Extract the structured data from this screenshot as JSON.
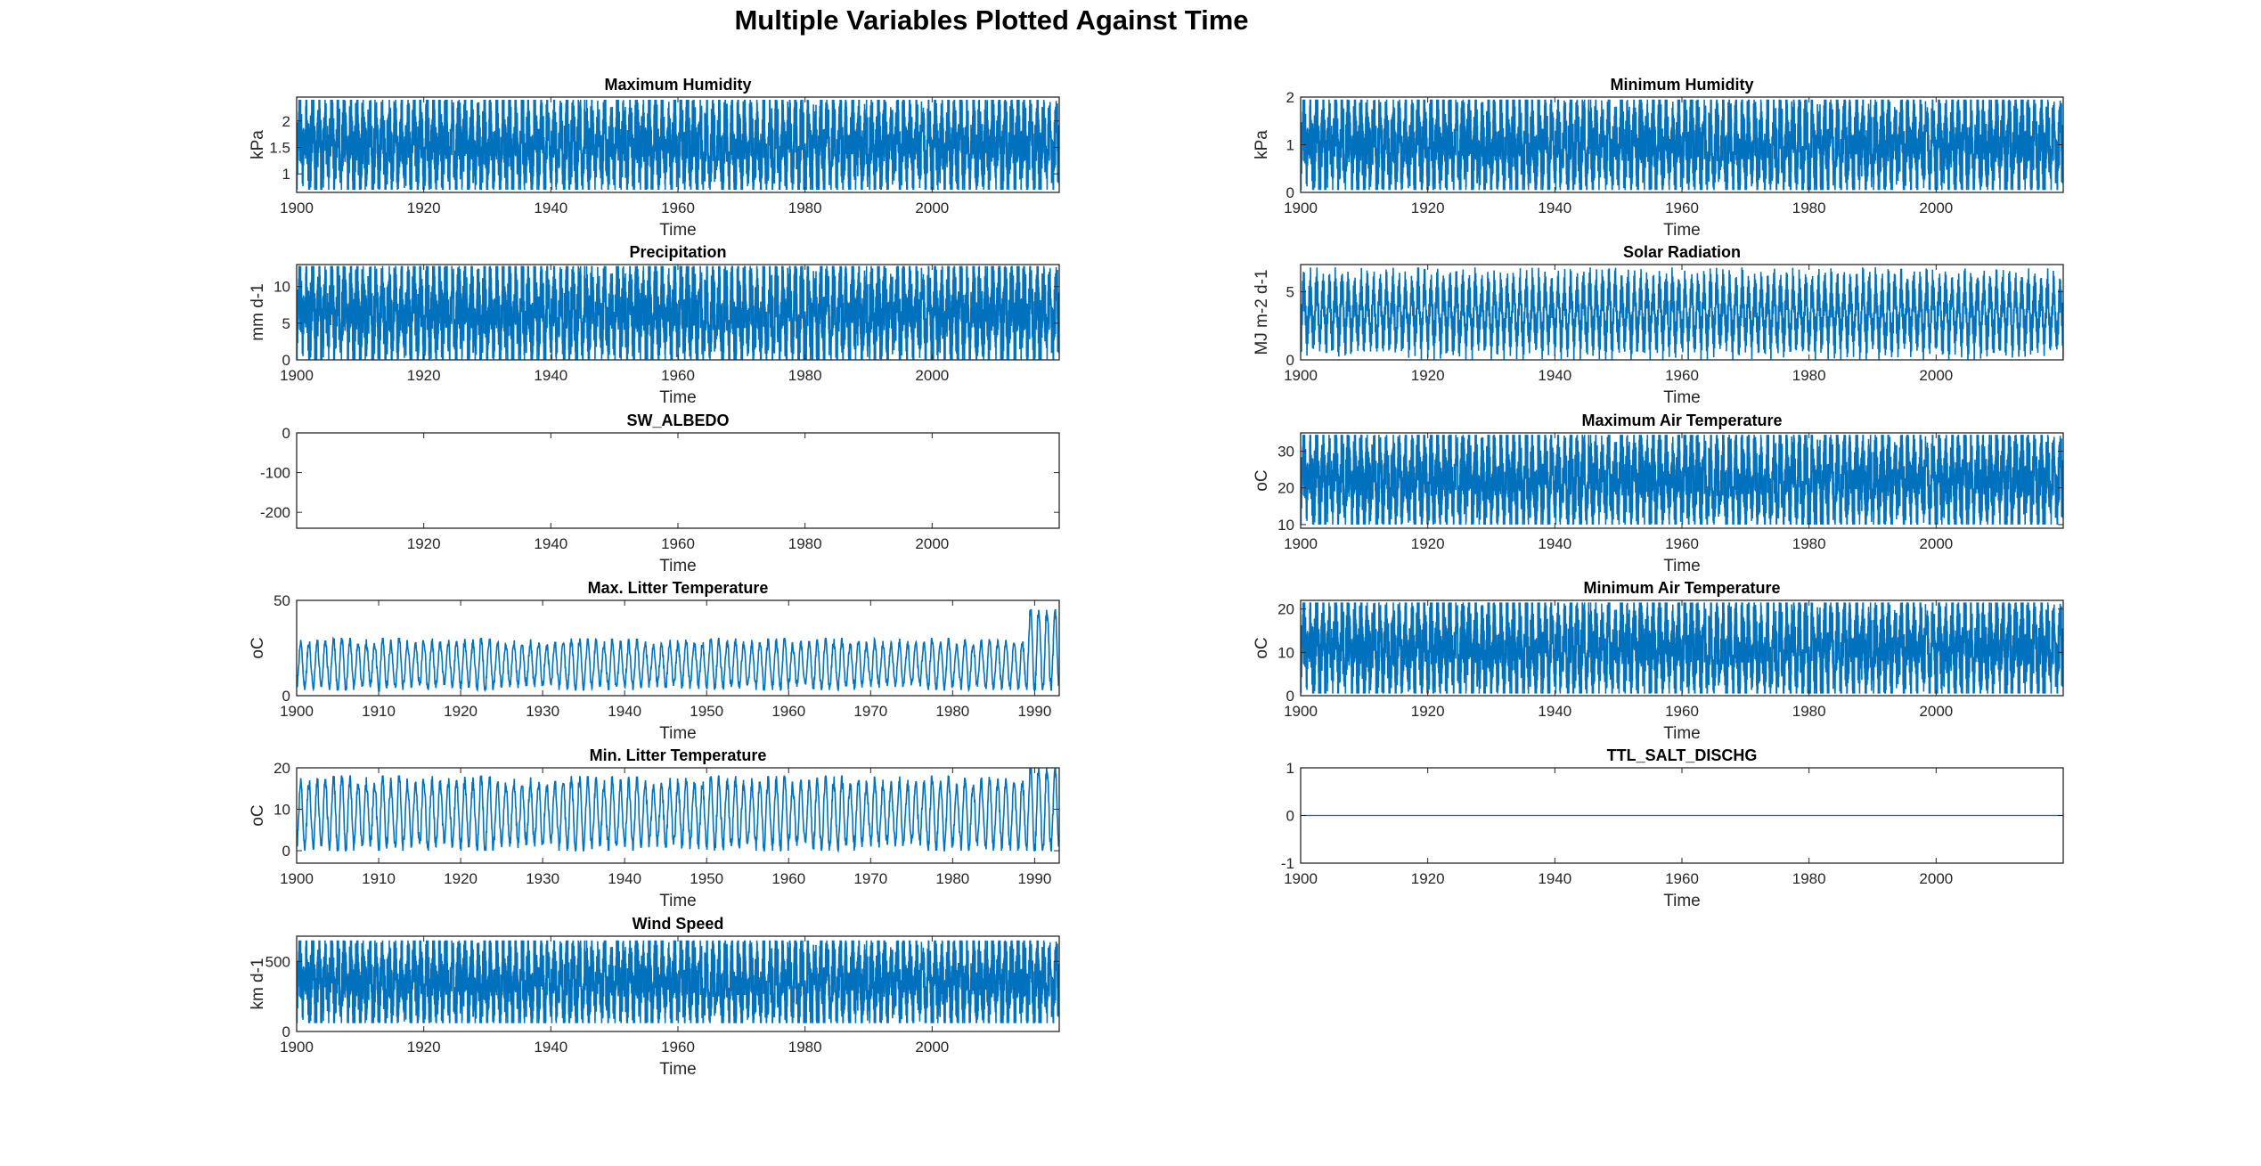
{
  "figure_title": "Multiple Variables Plotted Against Time",
  "colors": {
    "series": "#0072BD",
    "axis": "#262626"
  },
  "chart_data": [
    {
      "id": "max-humidity",
      "type": "line",
      "title": "Maximum Humidity",
      "xlabel": "Time",
      "ylabel": "kPa",
      "xlim": [
        1900,
        2020
      ],
      "ylim": [
        0.65,
        2.45
      ],
      "xticks": [
        "1900",
        "1920",
        "1940",
        "1960",
        "1980",
        "2000"
      ],
      "yticks": [
        "1",
        "1.5",
        "2"
      ],
      "series": [
        {
          "pattern": "seasonal-dense",
          "period_years": 1,
          "min": 0.7,
          "max": 2.4
        }
      ]
    },
    {
      "id": "min-humidity",
      "type": "line",
      "title": "Minimum Humidity",
      "xlabel": "Time",
      "ylabel": "kPa",
      "xlim": [
        1900,
        2020
      ],
      "ylim": [
        0,
        2
      ],
      "xticks": [
        "1900",
        "1920",
        "1940",
        "1960",
        "1980",
        "2000"
      ],
      "yticks": [
        "0",
        "1",
        "2"
      ],
      "series": [
        {
          "pattern": "seasonal-dense",
          "period_years": 1,
          "min": 0.05,
          "max": 1.95
        }
      ]
    },
    {
      "id": "precipitation",
      "type": "line",
      "title": "Precipitation",
      "xlabel": "Time",
      "ylabel": "mm d-1",
      "xlim": [
        1900,
        2020
      ],
      "ylim": [
        0,
        13
      ],
      "xticks": [
        "1900",
        "1920",
        "1940",
        "1960",
        "1980",
        "2000"
      ],
      "yticks": [
        "0",
        "5",
        "10"
      ],
      "series": [
        {
          "pattern": "seasonal-dense",
          "period_years": 1,
          "min": 0,
          "max": 12.8
        }
      ]
    },
    {
      "id": "solar-radiation",
      "type": "line",
      "title": "Solar Radiation",
      "xlabel": "Time",
      "ylabel": "MJ m-2 d-1",
      "xlim": [
        1900,
        2020
      ],
      "ylim": [
        0,
        7
      ],
      "xticks": [
        "1900",
        "1920",
        "1940",
        "1960",
        "1980",
        "2000"
      ],
      "yticks": [
        "0",
        "5"
      ],
      "series": [
        {
          "pattern": "seasonal-sparse",
          "period_years": 1,
          "min": 0,
          "max": 6.8
        }
      ]
    },
    {
      "id": "sw-albedo",
      "type": "line",
      "title": "SW_ALBEDO",
      "xlabel": "Time",
      "ylabel": "",
      "xlim": [
        1900,
        2020
      ],
      "ylim": [
        -240,
        0
      ],
      "xticks": [
        "1920",
        "1940",
        "1960",
        "1980",
        "2000"
      ],
      "yticks": [
        "-200",
        "-100",
        "0"
      ],
      "series": []
    },
    {
      "id": "max-air-temp",
      "type": "line",
      "title": "Maximum Air Temperature",
      "xlabel": "Time",
      "ylabel": "oC",
      "xlim": [
        1900,
        2020
      ],
      "ylim": [
        9,
        35
      ],
      "xticks": [
        "1900",
        "1920",
        "1940",
        "1960",
        "1980",
        "2000"
      ],
      "yticks": [
        "10",
        "20",
        "30"
      ],
      "series": [
        {
          "pattern": "seasonal-dense",
          "period_years": 1,
          "min": 10,
          "max": 34.5
        }
      ]
    },
    {
      "id": "max-litter-temp",
      "type": "line",
      "title": "Max. Litter Temperature",
      "xlabel": "Time",
      "ylabel": "oC",
      "xlim": [
        1900,
        1993
      ],
      "ylim": [
        0,
        50
      ],
      "xticks": [
        "1900",
        "1910",
        "1920",
        "1930",
        "1940",
        "1950",
        "1960",
        "1970",
        "1980",
        "1990"
      ],
      "yticks": [
        "0",
        "50"
      ],
      "series": [
        {
          "pattern": "seasonal-wave",
          "period_years": 1,
          "min": 3,
          "max": 30,
          "spike_from": 1989,
          "spike_max": 45
        }
      ]
    },
    {
      "id": "min-air-temp",
      "type": "line",
      "title": "Minimum Air Temperature",
      "xlabel": "Time",
      "ylabel": "oC",
      "xlim": [
        1900,
        2020
      ],
      "ylim": [
        0,
        22
      ],
      "xticks": [
        "1900",
        "1920",
        "1940",
        "1960",
        "1980",
        "2000"
      ],
      "yticks": [
        "0",
        "10",
        "20"
      ],
      "series": [
        {
          "pattern": "seasonal-dense",
          "period_years": 1,
          "min": 0.5,
          "max": 21.5
        }
      ]
    },
    {
      "id": "min-litter-temp",
      "type": "line",
      "title": "Min. Litter Temperature",
      "xlabel": "Time",
      "ylabel": "oC",
      "xlim": [
        1900,
        1993
      ],
      "ylim": [
        -3,
        20
      ],
      "xticks": [
        "1900",
        "1910",
        "1920",
        "1930",
        "1940",
        "1950",
        "1960",
        "1970",
        "1980",
        "1990"
      ],
      "yticks": [
        "0",
        "10",
        "20"
      ],
      "series": [
        {
          "pattern": "seasonal-wave",
          "period_years": 1,
          "min": 0,
          "max": 18,
          "spike_from": 1989,
          "spike_max": 20
        }
      ]
    },
    {
      "id": "ttl-salt-dischg",
      "type": "line",
      "title": "TTL_SALT_DISCHG",
      "xlabel": "Time",
      "ylabel": "",
      "xlim": [
        1900,
        2020
      ],
      "ylim": [
        -1,
        1
      ],
      "xticks": [
        "1900",
        "1920",
        "1940",
        "1960",
        "1980",
        "2000"
      ],
      "yticks": [
        "-1",
        "0",
        "1"
      ],
      "series": [
        {
          "pattern": "constant",
          "value": 0
        }
      ]
    },
    {
      "id": "wind-speed",
      "type": "line",
      "title": "Wind Speed",
      "xlabel": "Time",
      "ylabel": "km d-1",
      "xlim": [
        1900,
        2020
      ],
      "ylim": [
        0,
        680
      ],
      "xticks": [
        "1900",
        "1920",
        "1940",
        "1960",
        "1980",
        "2000"
      ],
      "yticks": [
        "0",
        "500"
      ],
      "series": [
        {
          "pattern": "seasonal-dense",
          "period_years": 1,
          "min": 60,
          "max": 650
        }
      ]
    }
  ]
}
